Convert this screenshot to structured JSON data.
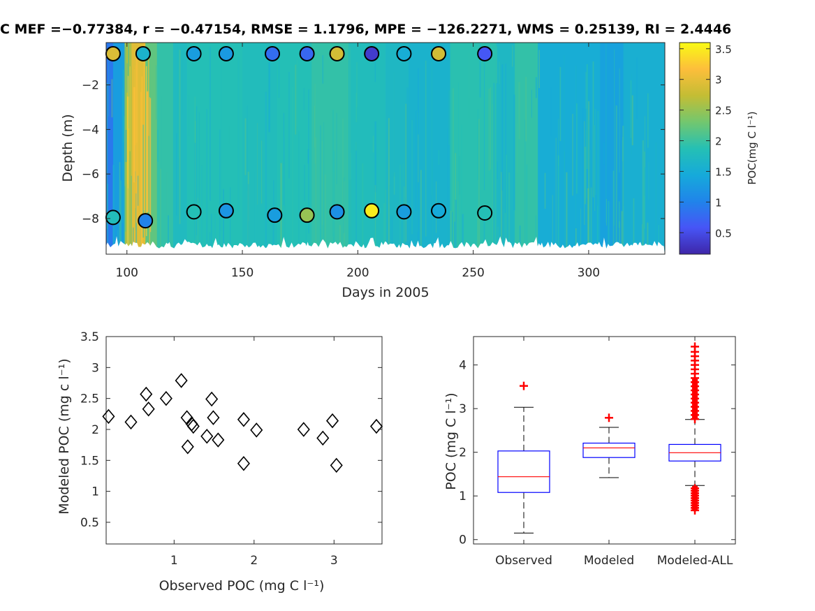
{
  "title": "C   MEF =−0.77384, r = −0.47154, RMSE = 1.1796, MPE = −126.2271, WMS = 0.25139, RI = 2.4446",
  "chart_data": [
    {
      "type": "heatmap",
      "xlabel": "Days in 2005",
      "ylabel": "Depth (m)",
      "xlim": [
        91,
        333
      ],
      "ylim": [
        -9.6,
        -0.1
      ],
      "xticks": [
        100,
        150,
        200,
        250,
        300
      ],
      "yticks": [
        -2,
        -4,
        -6,
        -8
      ],
      "xtick_labels": [
        "100",
        "150",
        "200",
        "250",
        "300"
      ],
      "ytick_labels": [
        "−2",
        "−4",
        "−6",
        "−8"
      ],
      "colorbar": {
        "label": "POC(mg C l⁻¹)",
        "clim": [
          0.15,
          3.6
        ],
        "ticks": [
          0.5,
          1,
          1.5,
          2,
          2.5,
          3,
          3.5
        ],
        "tick_labels": [
          "0.5",
          "1",
          "1.5",
          "2",
          "2.5",
          "3",
          "3.5"
        ],
        "colormap": "parula"
      },
      "field_bands": [
        {
          "x0": 91,
          "x1": 94,
          "value": 0.9
        },
        {
          "x0": 94,
          "x1": 99,
          "value": 1.3
        },
        {
          "x0": 99,
          "x1": 102,
          "value": 2.6
        },
        {
          "x0": 102,
          "x1": 108,
          "value": 2.95
        },
        {
          "x0": 108,
          "x1": 113,
          "value": 2.2
        },
        {
          "x0": 113,
          "x1": 120,
          "value": 1.95
        },
        {
          "x0": 120,
          "x1": 126,
          "value": 1.75
        },
        {
          "x0": 126,
          "x1": 150,
          "value": 1.85
        },
        {
          "x0": 150,
          "x1": 165,
          "value": 1.8
        },
        {
          "x0": 165,
          "x1": 180,
          "value": 1.85
        },
        {
          "x0": 180,
          "x1": 196,
          "value": 1.95
        },
        {
          "x0": 196,
          "x1": 212,
          "value": 1.8
        },
        {
          "x0": 212,
          "x1": 222,
          "value": 1.7
        },
        {
          "x0": 222,
          "x1": 240,
          "value": 1.6
        },
        {
          "x0": 240,
          "x1": 260,
          "value": 1.9
        },
        {
          "x0": 260,
          "x1": 268,
          "value": 1.7
        },
        {
          "x0": 268,
          "x1": 278,
          "value": 1.95
        },
        {
          "x0": 278,
          "x1": 305,
          "value": 1.5
        },
        {
          "x0": 305,
          "x1": 315,
          "value": 1.35
        },
        {
          "x0": 315,
          "x1": 333,
          "value": 1.55
        }
      ],
      "observations": [
        {
          "day": 94,
          "depth": -0.6,
          "value": 2.9
        },
        {
          "day": 107,
          "depth": -0.6,
          "value": 1.6
        },
        {
          "day": 129,
          "depth": -0.6,
          "value": 1.3
        },
        {
          "day": 143,
          "depth": -0.6,
          "value": 1.25
        },
        {
          "day": 163,
          "depth": -0.6,
          "value": 0.8
        },
        {
          "day": 178,
          "depth": -0.6,
          "value": 0.75
        },
        {
          "day": 191,
          "depth": -0.6,
          "value": 2.85
        },
        {
          "day": 206,
          "depth": -0.6,
          "value": 0.35
        },
        {
          "day": 220,
          "depth": -0.6,
          "value": 1.5
        },
        {
          "day": 235,
          "depth": -0.6,
          "value": 2.85
        },
        {
          "day": 255,
          "depth": -0.6,
          "value": 0.6
        },
        {
          "day": 94,
          "depth": -7.95,
          "value": 1.8
        },
        {
          "day": 108,
          "depth": -8.1,
          "value": 1.0
        },
        {
          "day": 129,
          "depth": -7.7,
          "value": 1.85
        },
        {
          "day": 143,
          "depth": -7.65,
          "value": 1.2
        },
        {
          "day": 164,
          "depth": -7.85,
          "value": 1.3
        },
        {
          "day": 178,
          "depth": -7.85,
          "value": 2.5
        },
        {
          "day": 191,
          "depth": -7.7,
          "value": 1.15
        },
        {
          "day": 206,
          "depth": -7.65,
          "value": 3.5
        },
        {
          "day": 220,
          "depth": -7.7,
          "value": 1.3
        },
        {
          "day": 235,
          "depth": -7.65,
          "value": 1.45
        },
        {
          "day": 255,
          "depth": -7.75,
          "value": 1.85
        }
      ]
    },
    {
      "type": "scatter",
      "xlabel": "Observed POC (mg C l⁻¹)",
      "ylabel": "Modeled POC (mg c l⁻¹)",
      "xlim": [
        0.15,
        3.6
      ],
      "ylim": [
        0.15,
        3.5
      ],
      "xticks": [
        1,
        2,
        3
      ],
      "yticks": [
        0.5,
        1,
        1.5,
        2,
        2.5,
        3,
        3.5
      ],
      "xtick_labels": [
        "1",
        "2",
        "3"
      ],
      "ytick_labels": [
        "0.5",
        "1",
        "1.5",
        "2",
        "2.5",
        "3",
        "3.5"
      ],
      "marker": "diamond",
      "points": [
        {
          "x": 0.18,
          "y": 2.21
        },
        {
          "x": 0.46,
          "y": 2.12
        },
        {
          "x": 0.65,
          "y": 2.57
        },
        {
          "x": 0.68,
          "y": 2.33
        },
        {
          "x": 0.9,
          "y": 2.5
        },
        {
          "x": 1.09,
          "y": 2.79
        },
        {
          "x": 1.16,
          "y": 2.19
        },
        {
          "x": 1.17,
          "y": 1.72
        },
        {
          "x": 1.22,
          "y": 2.09
        },
        {
          "x": 1.24,
          "y": 2.05
        },
        {
          "x": 1.41,
          "y": 1.89
        },
        {
          "x": 1.47,
          "y": 2.49
        },
        {
          "x": 1.49,
          "y": 2.19
        },
        {
          "x": 1.55,
          "y": 1.83
        },
        {
          "x": 1.87,
          "y": 2.16
        },
        {
          "x": 1.87,
          "y": 1.45
        },
        {
          "x": 2.03,
          "y": 1.99
        },
        {
          "x": 2.62,
          "y": 2.0
        },
        {
          "x": 2.86,
          "y": 1.86
        },
        {
          "x": 2.98,
          "y": 2.14
        },
        {
          "x": 3.03,
          "y": 1.42
        },
        {
          "x": 3.53,
          "y": 2.05
        }
      ]
    },
    {
      "type": "box",
      "ylabel": "POC (mg C l⁻¹)",
      "ylim": [
        -0.1,
        4.65
      ],
      "yticks": [
        0,
        1,
        2,
        3,
        4
      ],
      "ytick_labels": [
        "0",
        "1",
        "2",
        "3",
        "4"
      ],
      "categories": [
        "Observed",
        "Modeled",
        "Modeled-ALL"
      ],
      "boxes": [
        {
          "name": "Observed",
          "q1": 1.08,
          "median": 1.44,
          "q3": 2.03,
          "whisker_low": 0.15,
          "whisker_high": 3.03,
          "outliers": [
            3.52
          ]
        },
        {
          "name": "Modeled",
          "q1": 1.88,
          "median": 2.1,
          "q3": 2.21,
          "whisker_low": 1.42,
          "whisker_high": 2.57,
          "outliers": [
            2.79
          ]
        },
        {
          "name": "Modeled-ALL",
          "q1": 1.8,
          "median": 1.99,
          "q3": 2.18,
          "whisker_low": 1.24,
          "whisker_high": 2.75,
          "outlier_range_high": [
            2.76,
            3.7
          ],
          "outlier_range_low": [
            0.67,
            1.23
          ],
          "outliers": [
            3.8,
            3.9,
            4.0,
            4.1,
            4.2,
            4.3,
            4.42
          ]
        }
      ]
    }
  ]
}
